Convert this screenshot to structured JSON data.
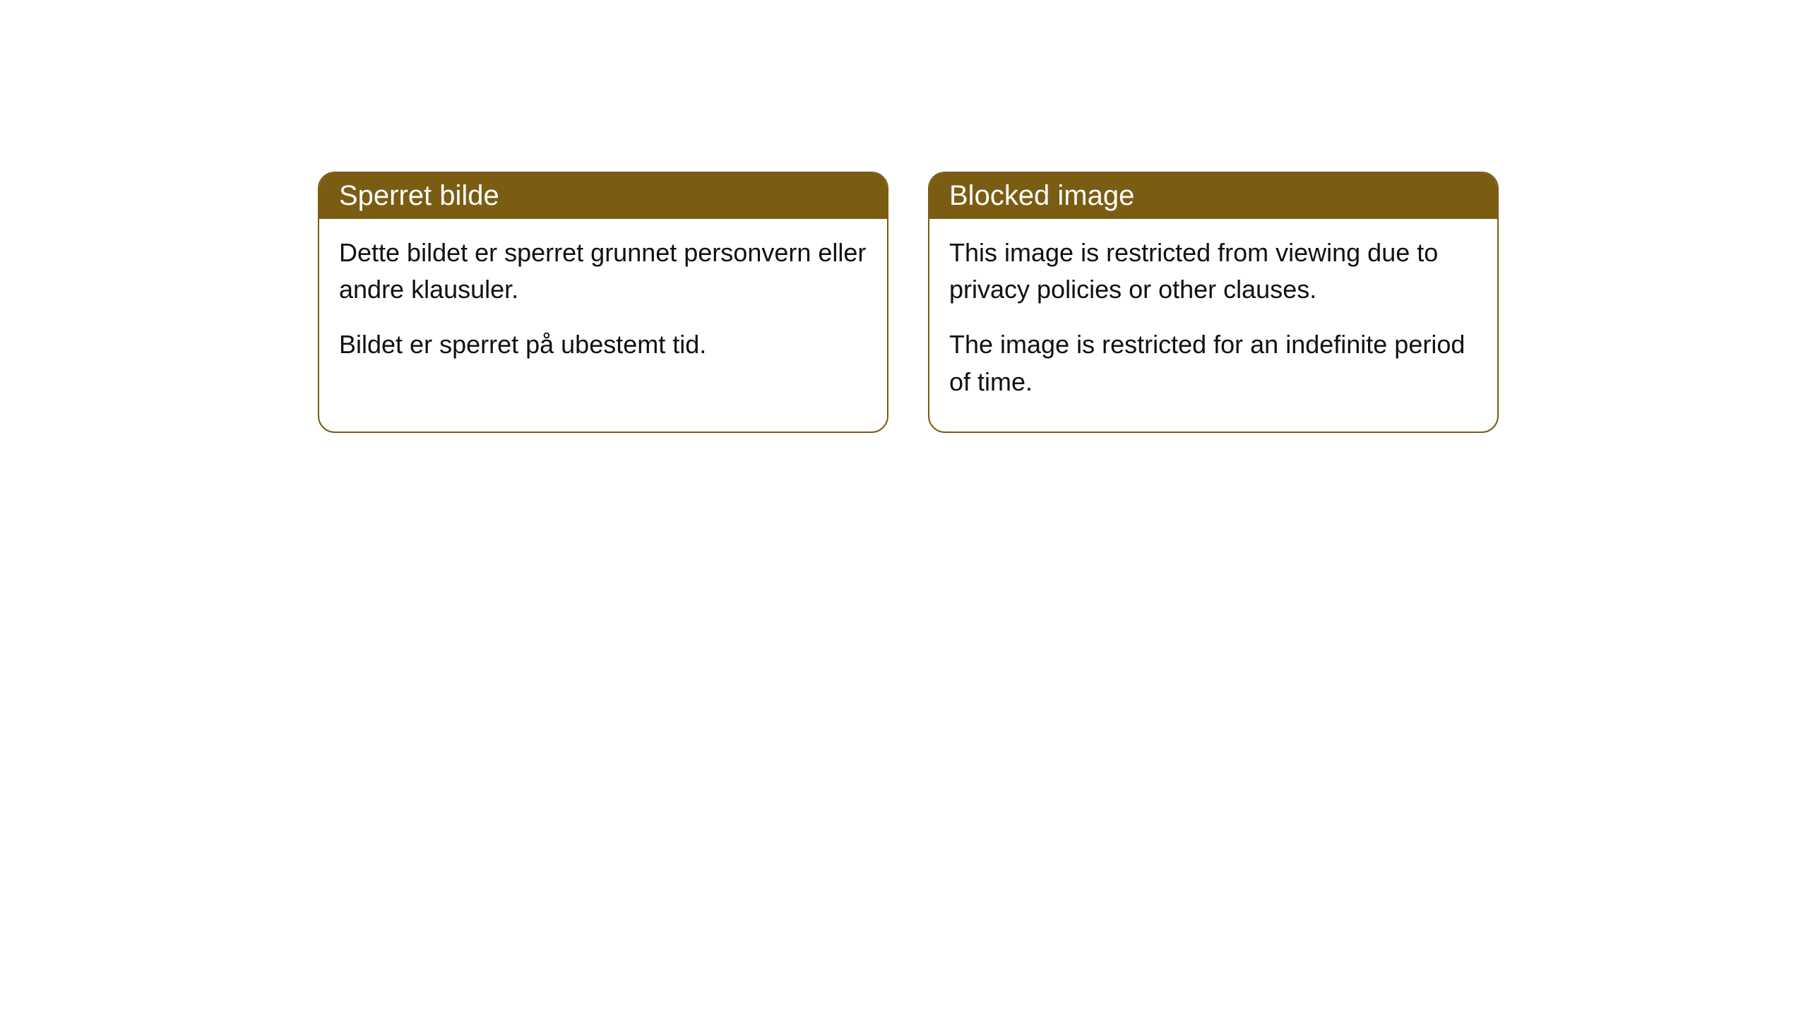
{
  "cards": [
    {
      "title": "Sperret bilde",
      "paragraph1": "Dette bildet er sperret grunnet personvern eller andre klausuler.",
      "paragraph2": "Bildet er sperret på ubestemt tid."
    },
    {
      "title": "Blocked image",
      "paragraph1": "This image is restricted from viewing due to privacy policies or other clauses.",
      "paragraph2": "The image is restricted for an indefinite period of time."
    }
  ],
  "style": {
    "header_bg_color": "#7a5c13",
    "header_text_color": "#ffffff",
    "border_color": "#7a5c13",
    "body_bg_color": "#ffffff",
    "body_text_color": "#111111",
    "border_radius": 24,
    "header_fontsize": 40,
    "body_fontsize": 36
  }
}
